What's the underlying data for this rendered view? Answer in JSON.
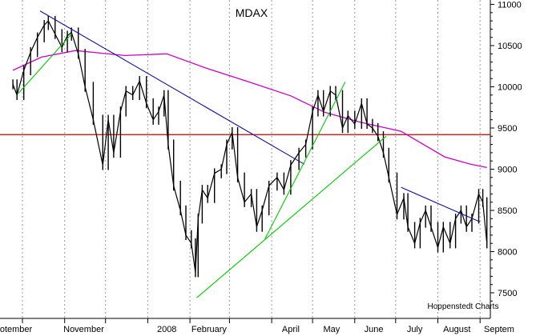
{
  "chart_data": {
    "type": "line",
    "title": "MDAX",
    "source": "Hoppenstedt Charts",
    "xlabel": "",
    "ylabel": "",
    "ylim": [
      7300,
      11200
    ],
    "y_ticks": [
      7500,
      8000,
      8500,
      9000,
      9500,
      10000,
      10500,
      11000
    ],
    "y_axis_position": "right",
    "x_month_labels": [
      "otember",
      "November",
      "2008",
      "February",
      "April",
      "May",
      "June",
      "July",
      "August",
      "Septem"
    ],
    "grid": "vertical dashed monthly lines",
    "colors": {
      "price": "#000000",
      "moving_average": "#cc00cc",
      "trend_blue": "#1010a0",
      "trend_green": "#00cc00",
      "level_red": "#cc0000"
    },
    "series": [
      {
        "kind": "price",
        "points": [
          [
            "2007-09-24",
            10030
          ],
          [
            "2007-09-27",
            9900
          ],
          [
            "2007-10-02",
            10200
          ],
          [
            "2007-10-07",
            10420
          ],
          [
            "2007-10-12",
            10600
          ],
          [
            "2007-10-17",
            10750
          ],
          [
            "2007-10-20",
            10800
          ],
          [
            "2007-10-25",
            10640
          ],
          [
            "2007-10-30",
            10480
          ],
          [
            "2007-11-03",
            10620
          ],
          [
            "2007-11-06",
            10660
          ],
          [
            "2007-11-11",
            10400
          ],
          [
            "2007-11-16",
            10000
          ],
          [
            "2007-11-22",
            9600
          ],
          [
            "2007-11-29",
            9050
          ],
          [
            "2007-12-03",
            9600
          ],
          [
            "2007-12-07",
            9200
          ],
          [
            "2007-12-12",
            9700
          ],
          [
            "2007-12-16",
            9950
          ],
          [
            "2007-12-21",
            9900
          ],
          [
            "2007-12-26",
            10070
          ],
          [
            "2007-12-31",
            9800
          ],
          [
            "2008-01-05",
            9600
          ],
          [
            "2008-01-09",
            9700
          ],
          [
            "2008-01-13",
            9900
          ],
          [
            "2008-01-16",
            9300
          ],
          [
            "2008-01-20",
            8800
          ],
          [
            "2008-01-25",
            8500
          ],
          [
            "2008-01-29",
            8200
          ],
          [
            "2008-02-02",
            8100
          ],
          [
            "2008-02-05",
            7750
          ],
          [
            "2008-02-07",
            8400
          ],
          [
            "2008-02-10",
            8750
          ],
          [
            "2008-02-14",
            8650
          ],
          [
            "2008-02-19",
            8950
          ],
          [
            "2008-02-24",
            9000
          ],
          [
            "2008-02-28",
            9300
          ],
          [
            "2008-03-03",
            9450
          ],
          [
            "2008-03-07",
            8900
          ],
          [
            "2008-03-12",
            8600
          ],
          [
            "2008-03-17",
            8700
          ],
          [
            "2008-03-21",
            8300
          ],
          [
            "2008-03-25",
            8500
          ],
          [
            "2008-03-30",
            8800
          ],
          [
            "2008-04-05",
            8900
          ],
          [
            "2008-04-10",
            8750
          ],
          [
            "2008-04-15",
            9050
          ],
          [
            "2008-04-21",
            9200
          ],
          [
            "2008-04-26",
            9300
          ],
          [
            "2008-05-01",
            9700
          ],
          [
            "2008-05-05",
            9900
          ],
          [
            "2008-05-09",
            9700
          ],
          [
            "2008-05-14",
            9950
          ],
          [
            "2008-05-18",
            9900
          ],
          [
            "2008-05-23",
            9500
          ],
          [
            "2008-05-27",
            9650
          ],
          [
            "2008-06-01",
            9550
          ],
          [
            "2008-06-06",
            9800
          ],
          [
            "2008-06-10",
            9550
          ],
          [
            "2008-06-14",
            9500
          ],
          [
            "2008-06-18",
            9400
          ],
          [
            "2008-06-22",
            9200
          ],
          [
            "2008-06-26",
            8900
          ],
          [
            "2008-07-02",
            8450
          ],
          [
            "2008-07-07",
            8650
          ],
          [
            "2008-07-10",
            8300
          ],
          [
            "2008-07-15",
            8100
          ],
          [
            "2008-07-19",
            8350
          ],
          [
            "2008-07-23",
            8500
          ],
          [
            "2008-07-27",
            8300
          ],
          [
            "2008-08-01",
            8050
          ],
          [
            "2008-08-05",
            8300
          ],
          [
            "2008-08-10",
            8100
          ],
          [
            "2008-08-14",
            8400
          ],
          [
            "2008-08-18",
            8500
          ],
          [
            "2008-08-22",
            8300
          ],
          [
            "2008-08-26",
            8400
          ],
          [
            "2008-08-31",
            8700
          ],
          [
            "2008-09-03",
            8600
          ],
          [
            "2008-09-06",
            8100
          ]
        ]
      },
      {
        "kind": "moving_average",
        "points": [
          [
            "2007-09-24",
            10200
          ],
          [
            "2007-10-15",
            10360
          ],
          [
            "2007-11-09",
            10440
          ],
          [
            "2007-12-15",
            10380
          ],
          [
            "2008-01-15",
            10400
          ],
          [
            "2008-02-14",
            10220
          ],
          [
            "2008-03-15",
            10060
          ],
          [
            "2008-04-15",
            9890
          ],
          [
            "2008-05-10",
            9690
          ],
          [
            "2008-06-05",
            9570
          ],
          [
            "2008-07-05",
            9460
          ],
          [
            "2008-08-06",
            9150
          ],
          [
            "2008-08-25",
            9060
          ],
          [
            "2008-09-06",
            9020
          ]
        ]
      }
    ],
    "trend_lines": [
      {
        "color": "blue",
        "from": [
          "2007-10-14",
          10920
        ],
        "to": [
          "2008-04-25",
          9060
        ]
      },
      {
        "color": "blue",
        "from": [
          "2008-07-05",
          8780
        ],
        "to": [
          "2008-09-01",
          8360
        ]
      },
      {
        "color": "green",
        "from": [
          "2007-09-28",
          9920
        ],
        "to": [
          "2007-11-06",
          10640
        ]
      },
      {
        "color": "green",
        "from": [
          "2008-02-06",
          7440
        ],
        "to": [
          "2008-06-24",
          9400
        ]
      },
      {
        "color": "green",
        "from": [
          "2008-03-27",
          8150
        ],
        "to": [
          "2008-05-25",
          10060
        ]
      }
    ],
    "horizontal_lines": [
      {
        "color": "red",
        "value": 9420
      }
    ]
  }
}
